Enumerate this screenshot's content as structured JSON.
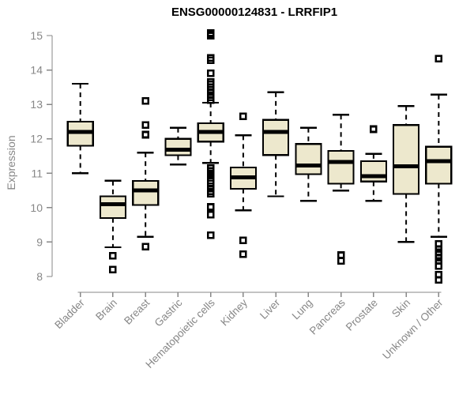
{
  "title": "ENSG00000124831 - LRRFIP1",
  "chart_data": {
    "type": "boxplot",
    "title": "ENSG00000124831 - LRRFIP1",
    "xlabel": "",
    "ylabel": "Expression",
    "ylim": [
      8,
      15
    ],
    "yticks": [
      8,
      9,
      10,
      11,
      12,
      13,
      14,
      15
    ],
    "grid": false,
    "legend": "none",
    "categories": [
      "Bladder",
      "Brain",
      "Breast",
      "Gastric",
      "Hematopoietic cells",
      "Kidney",
      "Liver",
      "Lung",
      "Pancreas",
      "Prostate",
      "Skin",
      "Unknown / Other"
    ],
    "series": [
      {
        "name": "Bladder",
        "low": 11.0,
        "q1": 11.8,
        "median": 12.2,
        "q3": 12.5,
        "high": 13.6,
        "outliers": []
      },
      {
        "name": "Brain",
        "low": 8.85,
        "q1": 9.7,
        "median": 10.1,
        "q3": 10.33,
        "high": 10.78,
        "outliers": [
          8.6,
          8.2
        ]
      },
      {
        "name": "Breast",
        "low": 9.15,
        "q1": 10.08,
        "median": 10.5,
        "q3": 10.78,
        "high": 11.6,
        "outliers": [
          13.1,
          12.4,
          12.12,
          8.87
        ]
      },
      {
        "name": "Gastric",
        "low": 11.25,
        "q1": 11.52,
        "median": 11.68,
        "q3": 12.0,
        "high": 12.32,
        "outliers": []
      },
      {
        "name": "Hematopoietic cells",
        "low": 11.3,
        "q1": 11.92,
        "median": 12.2,
        "q3": 12.45,
        "high": 13.05,
        "outliers": [
          15.07,
          15.0,
          14.35,
          14.28,
          13.9,
          13.65,
          13.58,
          13.5,
          13.42,
          13.35,
          13.27,
          13.2,
          13.12,
          11.15,
          11.07,
          11.0,
          10.93,
          10.86,
          10.78,
          10.7,
          10.62,
          10.55,
          10.47,
          10.4,
          10.02,
          9.8,
          9.2
        ]
      },
      {
        "name": "Kidney",
        "low": 9.92,
        "q1": 10.55,
        "median": 10.88,
        "q3": 11.17,
        "high": 12.1,
        "outliers": [
          12.65,
          9.05,
          8.65
        ]
      },
      {
        "name": "Liver",
        "low": 10.33,
        "q1": 11.53,
        "median": 12.2,
        "q3": 12.55,
        "high": 13.35,
        "outliers": []
      },
      {
        "name": "Lung",
        "low": 10.2,
        "q1": 10.97,
        "median": 11.22,
        "q3": 11.85,
        "high": 12.32,
        "outliers": []
      },
      {
        "name": "Pancreas",
        "low": 10.5,
        "q1": 10.7,
        "median": 11.33,
        "q3": 11.65,
        "high": 12.7,
        "outliers": [
          8.62,
          8.45
        ]
      },
      {
        "name": "Prostate",
        "low": 10.2,
        "q1": 10.76,
        "median": 10.92,
        "q3": 11.35,
        "high": 11.56,
        "outliers": [
          12.28
        ]
      },
      {
        "name": "Skin",
        "low": 9.0,
        "q1": 10.4,
        "median": 11.2,
        "q3": 12.4,
        "high": 12.95,
        "outliers": []
      },
      {
        "name": "Unknown / Other",
        "low": 9.15,
        "q1": 10.7,
        "median": 11.35,
        "q3": 11.77,
        "high": 13.28,
        "outliers": [
          14.33,
          8.95,
          8.8,
          8.7,
          8.55,
          8.45,
          8.3,
          8.05,
          7.9
        ]
      }
    ],
    "colors": {
      "box_fill": "#EDE8CD",
      "box_stroke": "#000000",
      "axis": "#878787",
      "title": "#000000",
      "background": "#ffffff"
    }
  }
}
